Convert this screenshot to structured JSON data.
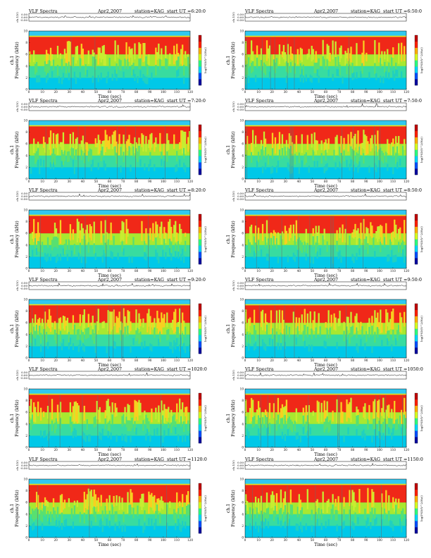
{
  "common": {
    "title_left": "VLF Spectra",
    "date": "Apr2,2007",
    "station": "station=KAG",
    "start_prefix": "start UT =",
    "wave_ylabel": "ch.1(V)",
    "spec_ylabel_line1": "ch.1",
    "spec_ylabel_line2": "Frequency (kHz)",
    "xlabel": "Time (sec)",
    "colorbar_label": "log(PSD(V^2/Hz))",
    "wave_ticks": [
      "0.50",
      "0.00",
      "-0.50"
    ],
    "x_ticks": [
      "0",
      "10",
      "20",
      "30",
      "40",
      "50",
      "60",
      "70",
      "80",
      "90",
      "100",
      "110",
      "120"
    ],
    "y_ticks": [
      "0",
      "2",
      "4",
      "6",
      "8",
      "10"
    ]
  },
  "chart_data": [
    {
      "type": "heatmap",
      "title": "VLF Spectra",
      "start_ut": "6:20:0",
      "xlabel": "Time (sec)",
      "ylabel": "Frequency (kHz)",
      "xlim": [
        0,
        120
      ],
      "ylim": [
        0,
        10
      ],
      "bands": [
        {
          "from_khz": 0,
          "to_khz": 2,
          "level": "low"
        },
        {
          "from_khz": 2,
          "to_khz": 4,
          "level": "medium-low"
        },
        {
          "from_khz": 4,
          "to_khz": 6,
          "level": "medium"
        },
        {
          "from_khz": 6,
          "to_khz": 9,
          "level": "high"
        },
        {
          "from_khz": 9,
          "to_khz": 10,
          "level": "very-low"
        }
      ]
    },
    {
      "type": "heatmap",
      "title": "VLF Spectra",
      "start_ut": "6:50:0",
      "xlabel": "Time (sec)",
      "ylabel": "Frequency (kHz)",
      "xlim": [
        0,
        120
      ],
      "ylim": [
        0,
        10
      ]
    },
    {
      "type": "heatmap",
      "title": "VLF Spectra",
      "start_ut": "7:20:0",
      "xlabel": "Time (sec)",
      "ylabel": "Frequency (kHz)",
      "xlim": [
        0,
        120
      ],
      "ylim": [
        0,
        10
      ]
    },
    {
      "type": "heatmap",
      "title": "VLF Spectra",
      "start_ut": "7:50:0",
      "xlabel": "Time (sec)",
      "ylabel": "Frequency (kHz)",
      "xlim": [
        0,
        120
      ],
      "ylim": [
        0,
        10
      ]
    },
    {
      "type": "heatmap",
      "title": "VLF Spectra",
      "start_ut": "8:20:0",
      "xlabel": "Time (sec)",
      "ylabel": "Frequency (kHz)",
      "xlim": [
        0,
        120
      ],
      "ylim": [
        0,
        10
      ]
    },
    {
      "type": "heatmap",
      "title": "VLF Spectra",
      "start_ut": "8:50:0",
      "xlabel": "Time (sec)",
      "ylabel": "Frequency (kHz)",
      "xlim": [
        0,
        120
      ],
      "ylim": [
        0,
        10
      ]
    },
    {
      "type": "heatmap",
      "title": "VLF Spectra",
      "start_ut": "9:20:0",
      "xlabel": "Time (sec)",
      "ylabel": "Frequency (kHz)",
      "xlim": [
        0,
        120
      ],
      "ylim": [
        0,
        10
      ]
    },
    {
      "type": "heatmap",
      "title": "VLF Spectra",
      "start_ut": "9:50:0",
      "xlabel": "Time (sec)",
      "ylabel": "Frequency (kHz)",
      "xlim": [
        0,
        120
      ],
      "ylim": [
        0,
        10
      ]
    },
    {
      "type": "heatmap",
      "title": "VLF Spectra",
      "start_ut": "1020:0",
      "xlabel": "Time (sec)",
      "ylabel": "Frequency (kHz)",
      "xlim": [
        0,
        120
      ],
      "ylim": [
        0,
        10
      ]
    },
    {
      "type": "heatmap",
      "title": "VLF Spectra",
      "start_ut": "1050:0",
      "xlabel": "Time (sec)",
      "ylabel": "Frequency (kHz)",
      "xlim": [
        0,
        120
      ],
      "ylim": [
        0,
        10
      ]
    },
    {
      "type": "heatmap",
      "title": "VLF Spectra",
      "start_ut": "1120:0",
      "xlabel": "Time (sec)",
      "ylabel": "Frequency (kHz)",
      "xlim": [
        0,
        120
      ],
      "ylim": [
        0,
        10
      ]
    },
    {
      "type": "heatmap",
      "title": "VLF Spectra",
      "start_ut": "1150:0",
      "xlabel": "Time (sec)",
      "ylabel": "Frequency (kHz)",
      "xlim": [
        0,
        120
      ],
      "ylim": [
        0,
        10
      ]
    }
  ],
  "colors": {
    "low": "#00c8e8",
    "medium_low": "#20d890",
    "medium": "#a8e830",
    "high": "#f02818",
    "top_band": "#30c8f0",
    "colorbar": [
      "#0000a0",
      "#0050ff",
      "#00d8ff",
      "#30ff80",
      "#d8ff20",
      "#ffb000",
      "#ff2000",
      "#c00000"
    ]
  }
}
